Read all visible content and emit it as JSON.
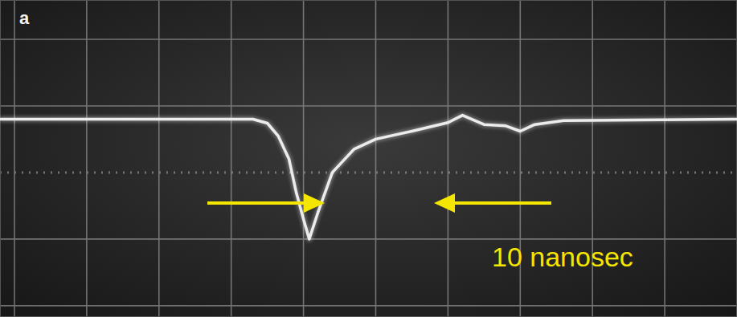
{
  "chart_data": {
    "type": "line",
    "title": "a",
    "annotations": [
      "10 nanosec"
    ],
    "x": [
      -0.2,
      3.3,
      3.5,
      3.65,
      3.8,
      3.9,
      4.0,
      4.08,
      4.2,
      4.4,
      4.7,
      5.0,
      5.5,
      6.0,
      6.2,
      6.5,
      6.8,
      7.0,
      7.2,
      7.6,
      10
    ],
    "values": [
      0.8,
      0.8,
      0.74,
      0.55,
      0.2,
      -0.3,
      -0.7,
      -1.0,
      -0.6,
      0.0,
      0.35,
      0.5,
      0.62,
      0.75,
      0.86,
      0.72,
      0.7,
      0.62,
      0.72,
      0.78,
      0.8
    ],
    "color": "#ececec",
    "xlim": [
      -0.2,
      10
    ],
    "ylim": [
      -2.17,
      2.59
    ],
    "xticks": [
      0,
      1,
      2,
      3,
      4,
      5,
      6,
      7,
      8,
      9,
      10
    ],
    "yticks": [
      -2,
      -1,
      0,
      1,
      2
    ],
    "grid": true,
    "tick_labels": false
  }
}
